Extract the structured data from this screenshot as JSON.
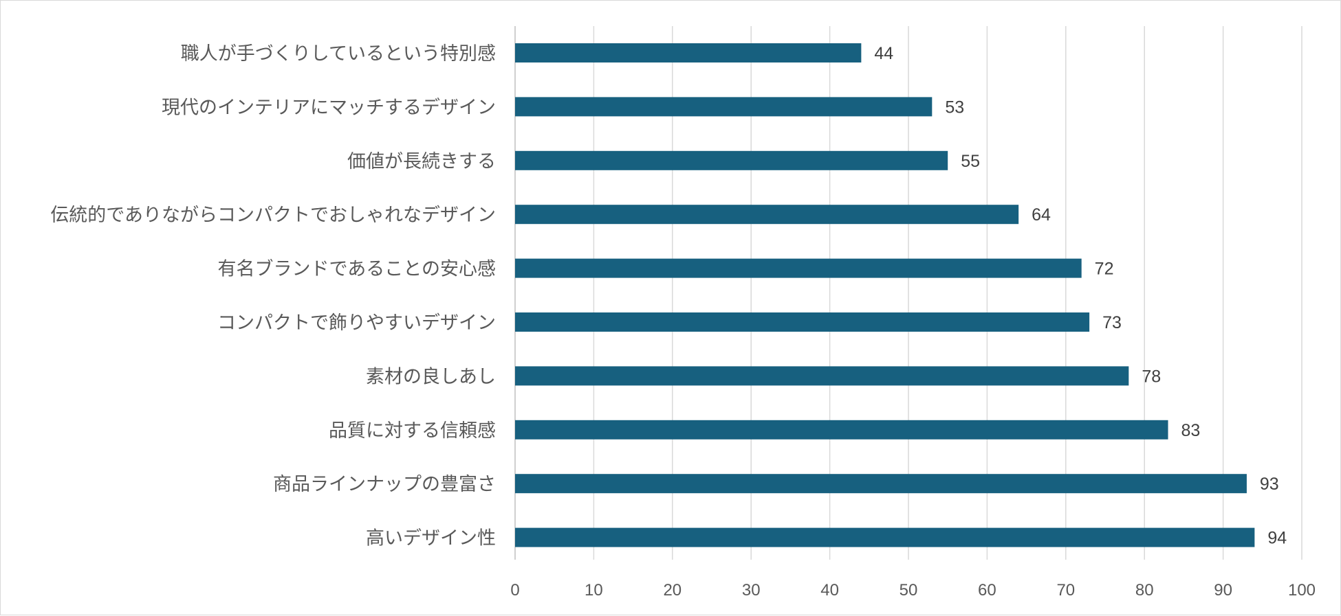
{
  "chart_data": {
    "type": "bar",
    "orientation": "horizontal",
    "categories": [
      "職人が手づくりしているという特別感",
      "現代のインテリアにマッチするデザイン",
      "価値が長続きする",
      "伝統的でありながらコンパクトでおしゃれなデザイン",
      "有名ブランドであることの安心感",
      "コンパクトで飾りやすいデザイン",
      "素材の良しあし",
      "品質に対する信頼感",
      "商品ラインナップの豊富さ",
      "高いデザイン性"
    ],
    "values": [
      44,
      53,
      55,
      64,
      72,
      73,
      78,
      83,
      93,
      94
    ],
    "xlim": [
      0,
      100
    ],
    "xticks": [
      0,
      10,
      20,
      30,
      40,
      50,
      60,
      70,
      80,
      90,
      100
    ],
    "title": "",
    "xlabel": "",
    "ylabel": "",
    "grid": "vertical",
    "data_labels": true,
    "colors": {
      "bar": "#17607f",
      "grid": "#d9d9d9",
      "text": "#595959"
    }
  }
}
